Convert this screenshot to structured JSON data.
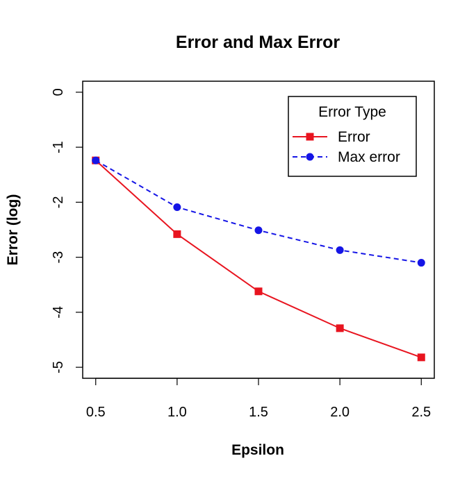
{
  "chart_data": {
    "type": "line",
    "title": "Error and Max Error",
    "xlabel": "Epsilon",
    "ylabel": "Error (log)",
    "x": [
      0.5,
      1.0,
      1.5,
      2.0,
      2.5
    ],
    "xticks": [
      "0.5",
      "1.0",
      "1.5",
      "2.0",
      "2.5"
    ],
    "yticks": [
      "0",
      "-1",
      "-2",
      "-3",
      "-4",
      "-5"
    ],
    "xlim": [
      0.42,
      2.58
    ],
    "ylim": [
      -5.2,
      0.2
    ],
    "grid": false,
    "legend": {
      "title": "Error Type",
      "placement": "top-right"
    },
    "series": [
      {
        "name": "Error",
        "values": [
          -1.24,
          -2.58,
          -3.62,
          -4.29,
          -4.82
        ],
        "color": "#e8141f",
        "marker": "square",
        "linestyle": "solid"
      },
      {
        "name": "Max error",
        "values": [
          -1.24,
          -2.09,
          -2.51,
          -2.87,
          -3.1
        ],
        "color": "#1515e6",
        "marker": "circle",
        "linestyle": "dashed"
      }
    ]
  }
}
